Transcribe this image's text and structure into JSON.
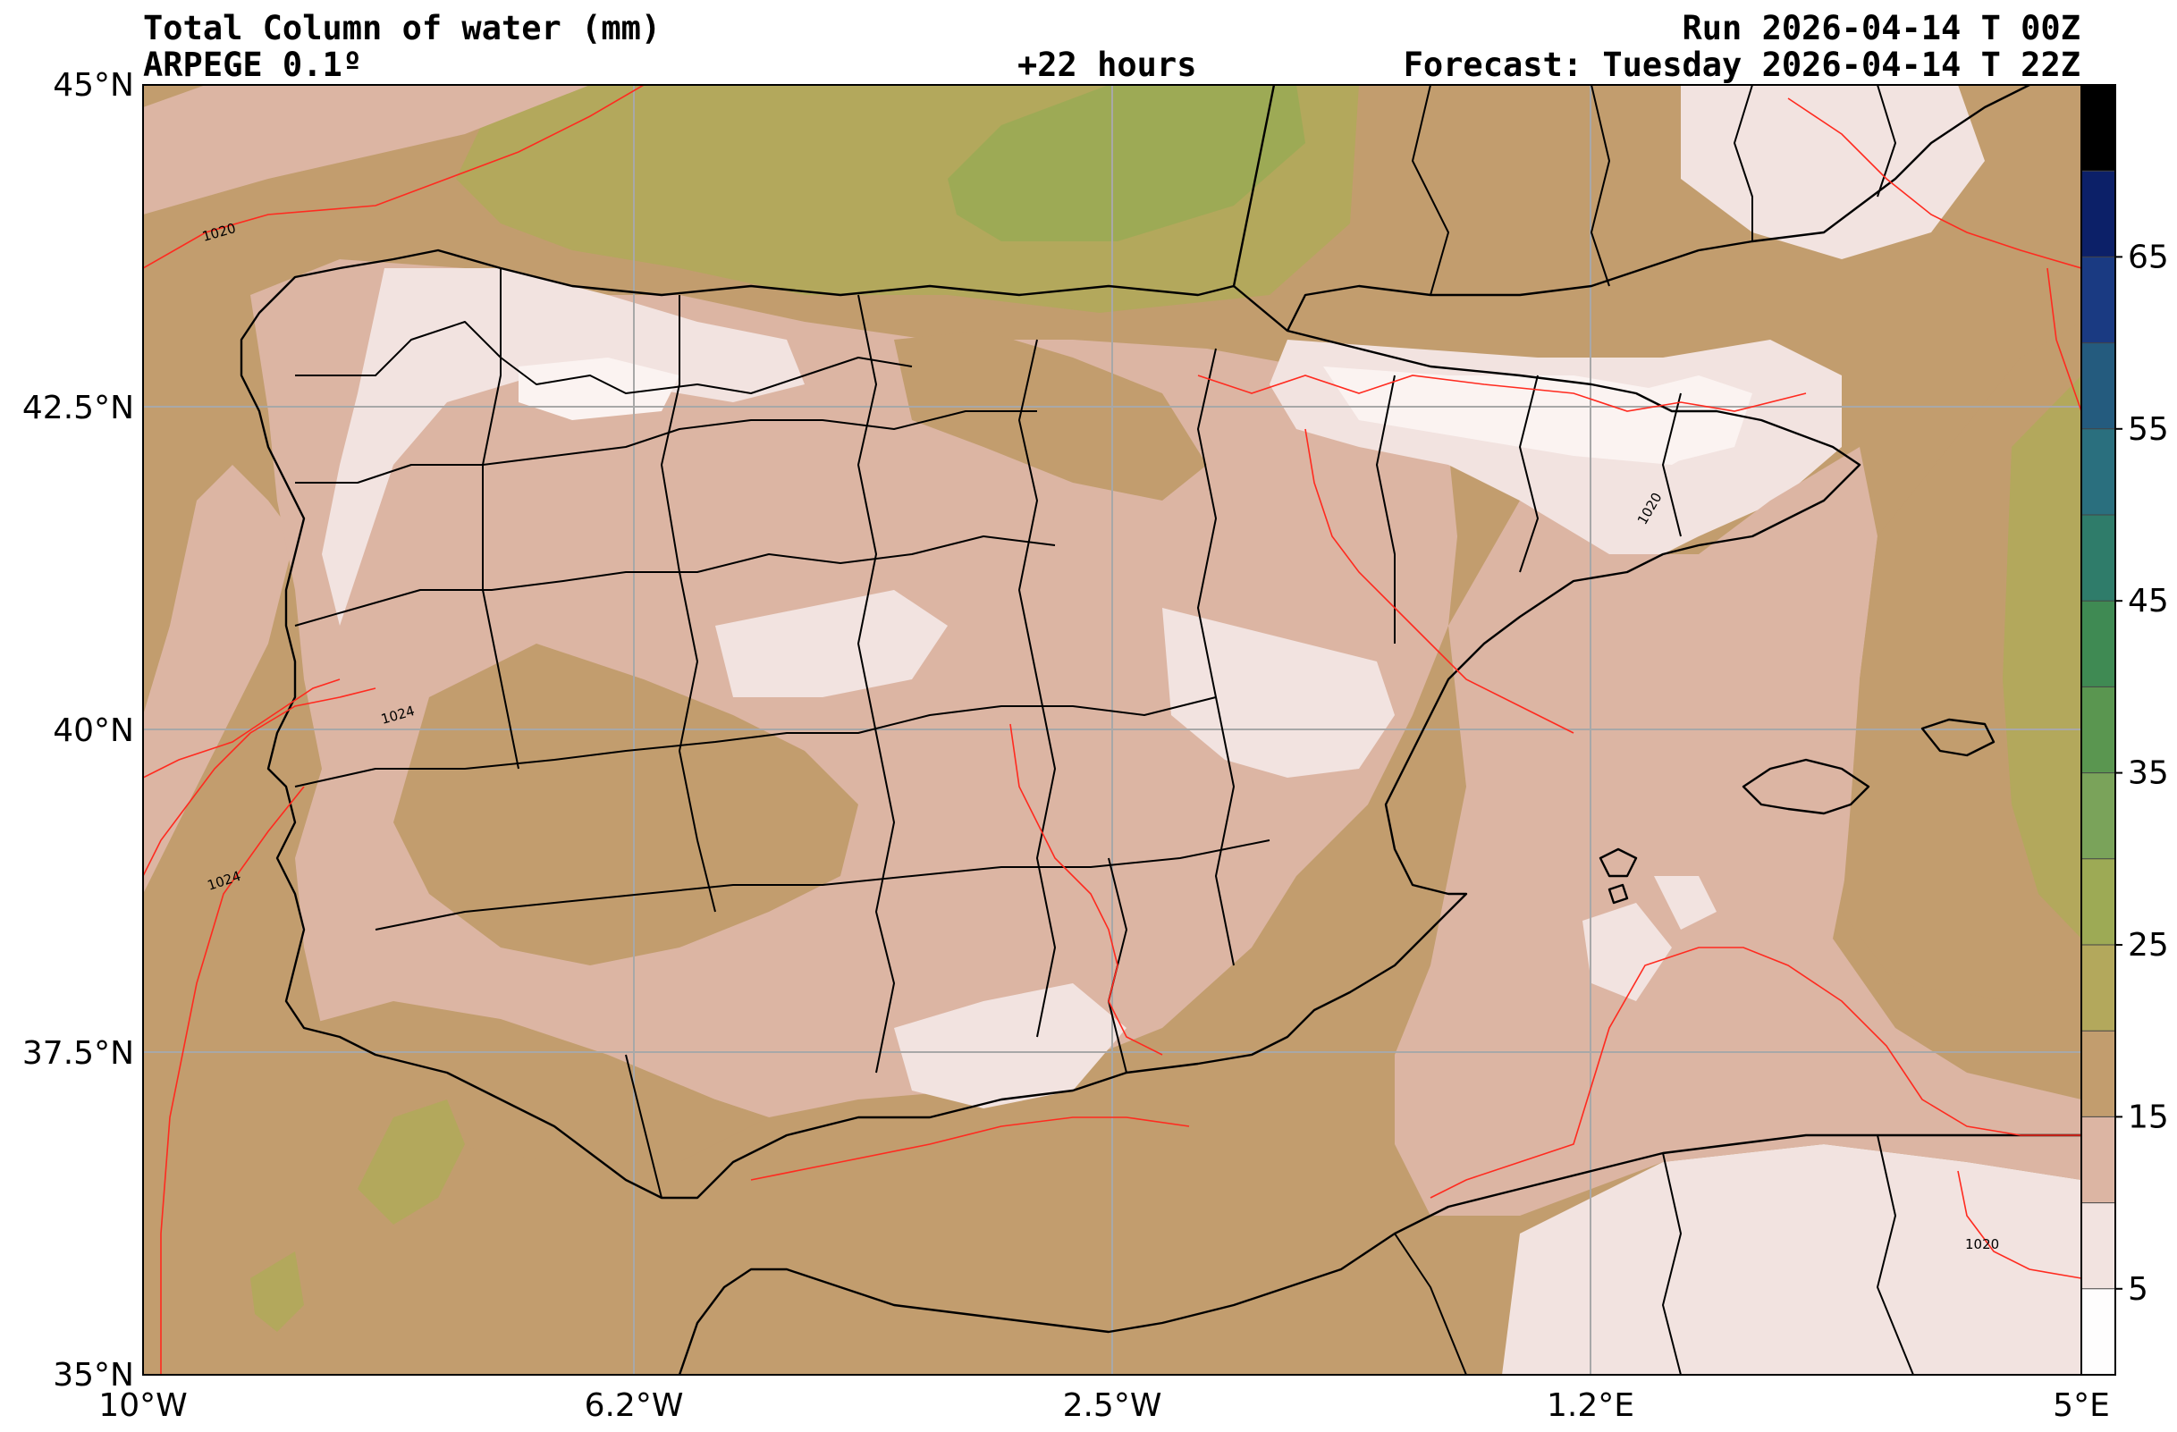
{
  "header": {
    "title": "Total Column of water (mm)",
    "model": "ARPEGE 0.1º",
    "lead": "+22 hours",
    "run": "Run 2026-04-14 T 00Z",
    "forecast": "Forecast: Tuesday 2026-04-14 T 22Z"
  },
  "map": {
    "lat_labels": [
      "45°N",
      "42.5°N",
      "40°N",
      "37.5°N",
      "35°N"
    ],
    "lon_labels": [
      "10°W",
      "6.2°W",
      "2.5°W",
      "1.2°E",
      "5°E"
    ],
    "lat_range": [
      35,
      45
    ],
    "lon_range": [
      -10,
      5
    ],
    "grid": true,
    "isobar_labels": [
      "1020",
      "1024",
      "1024",
      "1020",
      "1020"
    ],
    "isobar_color": "#ff2a1f"
  },
  "colorbar": {
    "ticks": [
      "5",
      "15",
      "25",
      "35",
      "45",
      "55",
      "65"
    ],
    "bins": [
      "#fefdfd",
      "#f2e3e0",
      "#dcb5a3",
      "#c29d6e",
      "#b3a85c",
      "#9daa55",
      "#7aa35a",
      "#5a9650",
      "#3f8a53",
      "#2f7c6a",
      "#2a6f7e",
      "#245b7e",
      "#1a3a82",
      "#0c2068",
      "#000000"
    ]
  },
  "palette": {
    "bg_dark": "#c29d6e",
    "pink": "#dcb5a3",
    "light": "#f2e3e0",
    "white": "#fbf3f1",
    "olive": "#b3a85c",
    "green": "#9daa55"
  }
}
